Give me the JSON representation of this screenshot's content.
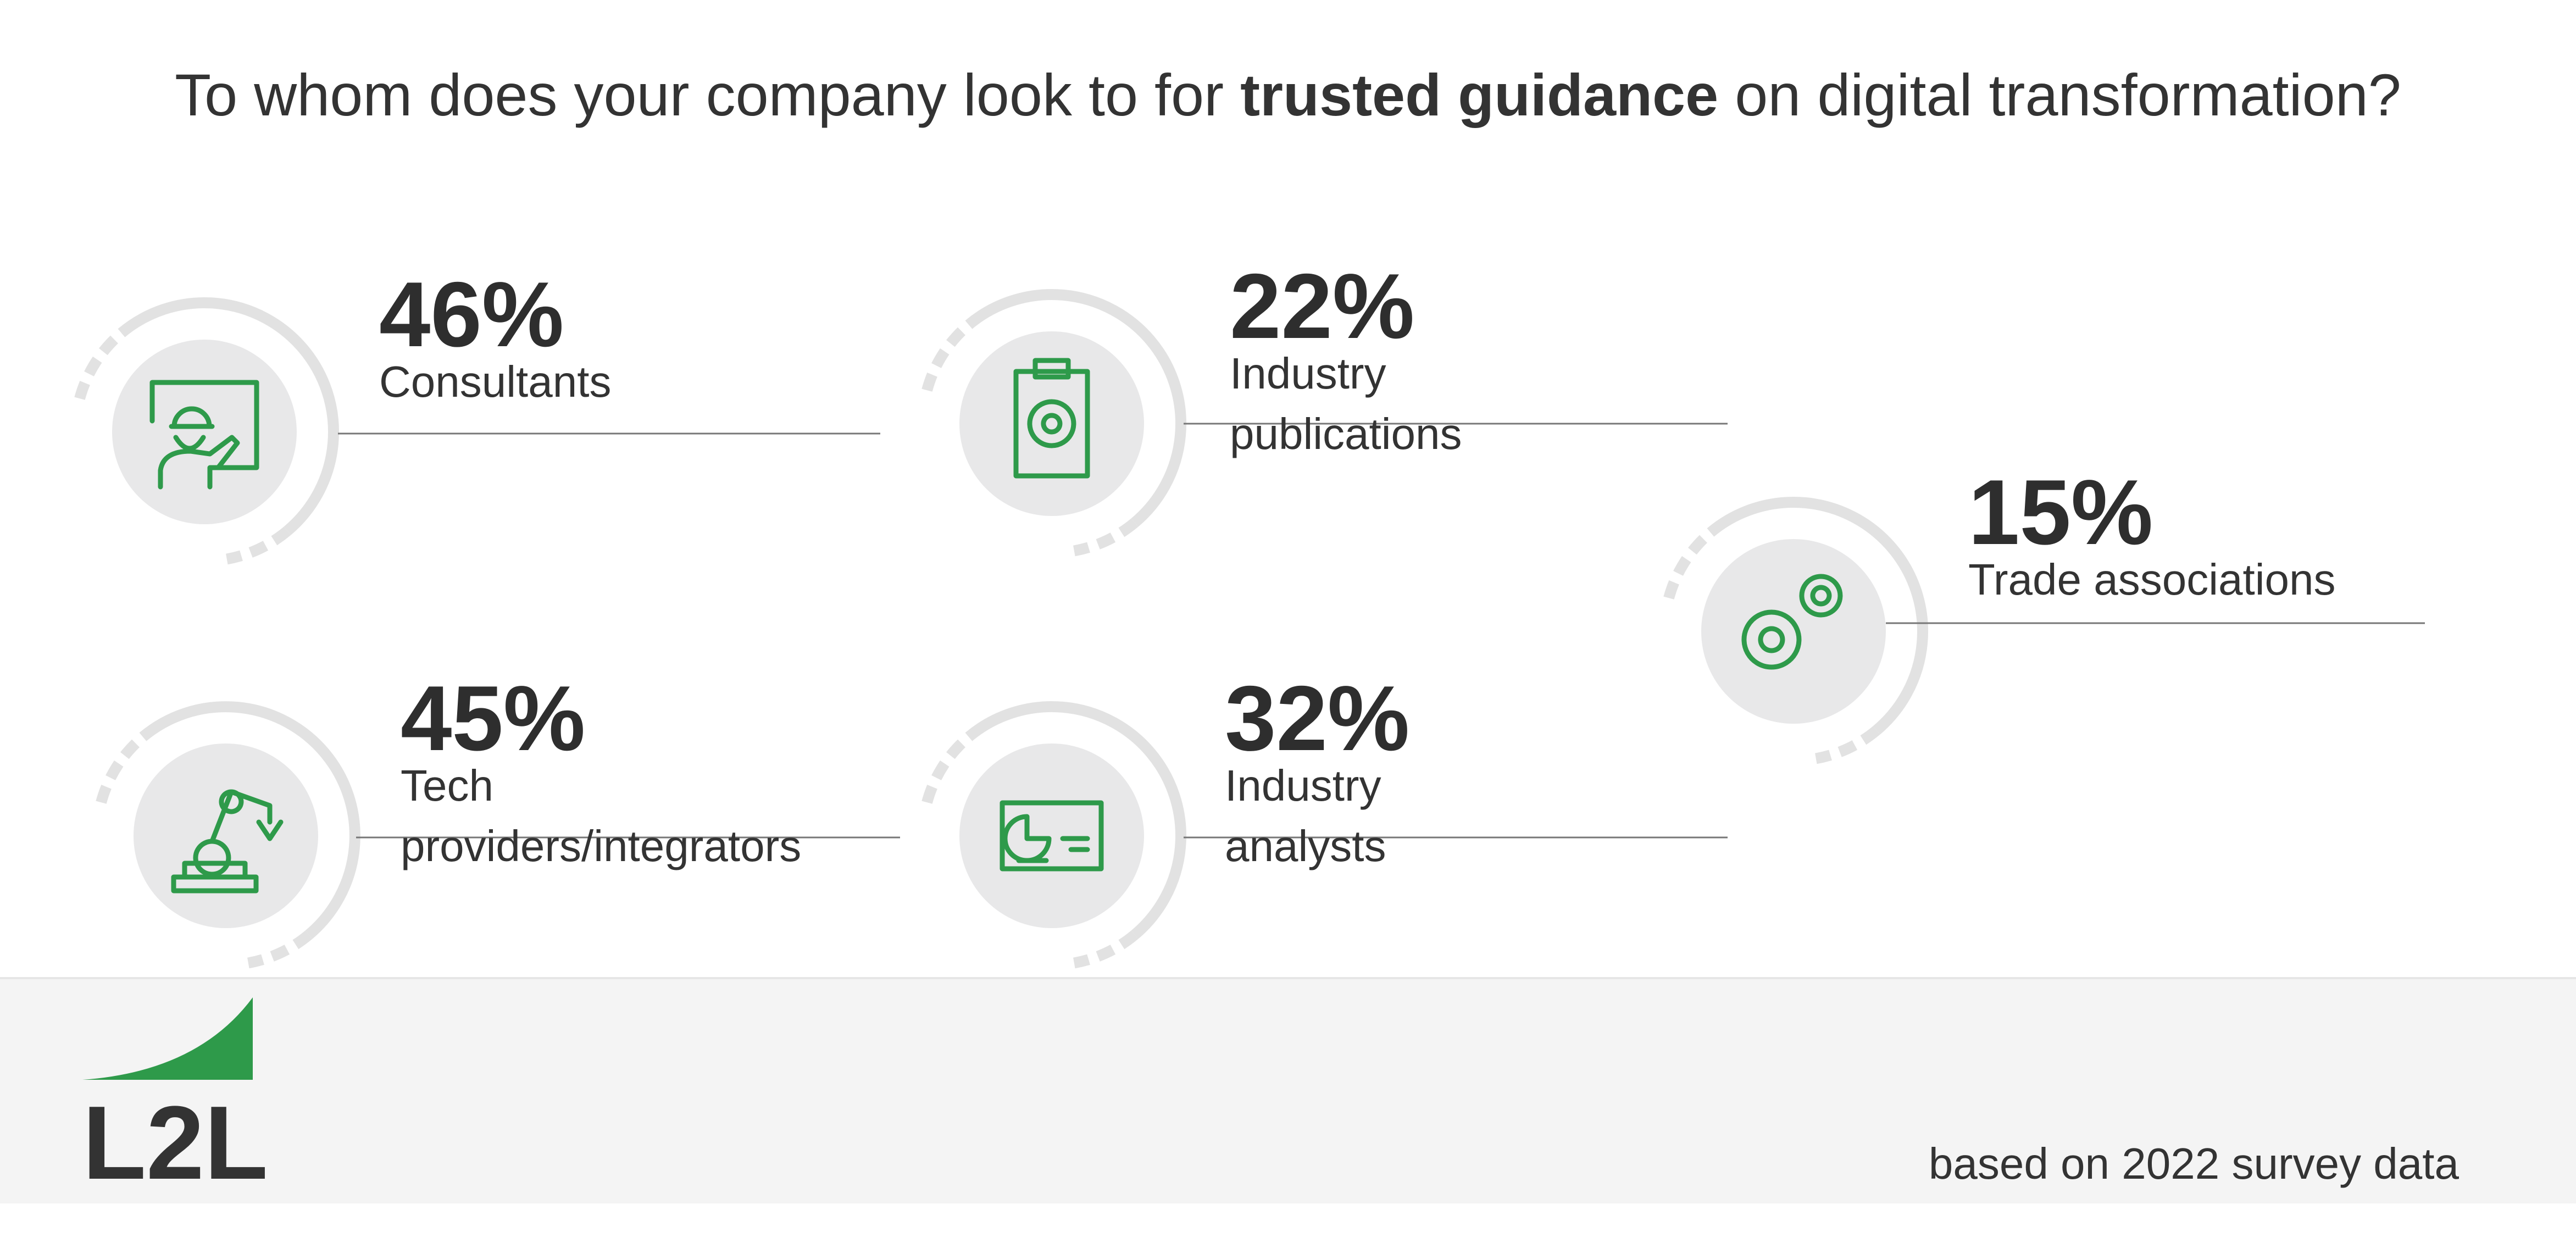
{
  "title": {
    "before": "To whom does your company look to for ",
    "emphasis": "trusted guidance",
    "after": " on digital transformation?"
  },
  "items": [
    {
      "value": "46%",
      "label": [
        "Consultants"
      ]
    },
    {
      "value": "22%",
      "label": [
        "Industry",
        "publications"
      ]
    },
    {
      "value": "15%",
      "label": [
        "Trade associations"
      ]
    },
    {
      "value": "45%",
      "label": [
        "Tech",
        "providers/integrators"
      ]
    },
    {
      "value": "32%",
      "label": [
        "Industry",
        "analysts"
      ]
    }
  ],
  "logo": {
    "text": "L2L"
  },
  "footnote": "based on 2022 survey data"
}
